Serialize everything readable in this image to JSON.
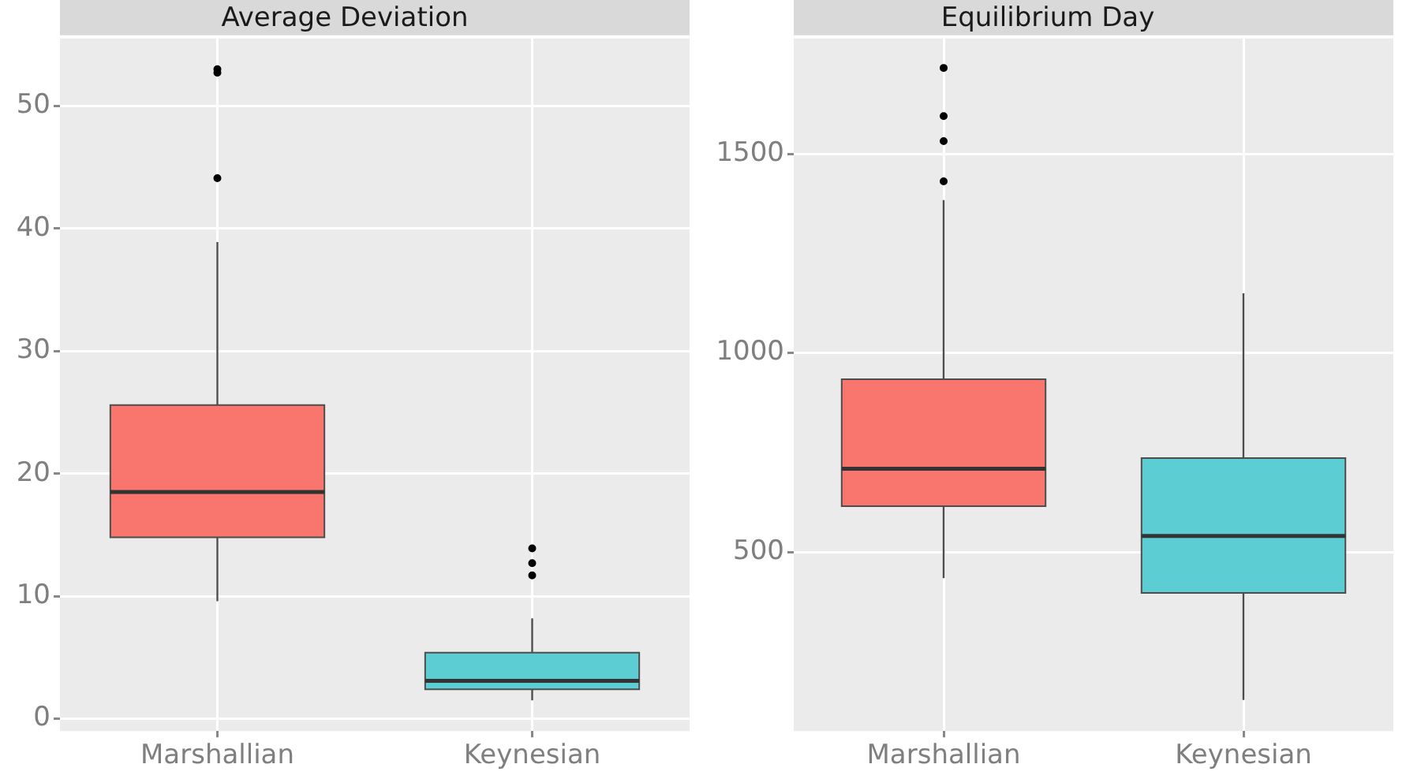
{
  "chart_data": [
    {
      "type": "box",
      "title": "Average Deviation",
      "categories": [
        "Marshallian",
        "Keynesian"
      ],
      "colors": [
        "#f8766d",
        "#5ccdd2"
      ],
      "boxes": [
        {
          "low": 9.6,
          "q1": 14.8,
          "median": 18.5,
          "q3": 25.6,
          "high": 38.9,
          "outliers": [
            44.1,
            52.7,
            53
          ]
        },
        {
          "low": 1.5,
          "q1": 2.4,
          "median": 3.1,
          "q3": 5.4,
          "high": 8.2,
          "outliers": [
            11.7,
            12.7,
            13.9
          ]
        }
      ],
      "ylim": [
        -1,
        55.5
      ],
      "yticks": [
        0,
        10,
        20,
        30,
        40,
        50
      ],
      "grid": true
    },
    {
      "type": "box",
      "title": "Equilibrium Day",
      "categories": [
        "Marshallian",
        "Keynesian"
      ],
      "colors": [
        "#f8766d",
        "#5ccdd2"
      ],
      "boxes": [
        {
          "low": 434,
          "q1": 615,
          "median": 709,
          "q3": 934,
          "high": 1384,
          "outliers": [
            1431,
            1532,
            1595,
            1716
          ]
        },
        {
          "low": 128,
          "q1": 397,
          "median": 540,
          "q3": 736,
          "high": 1150
        }
      ],
      "ylim": [
        50,
        1790
      ],
      "yticks": [
        500,
        1000,
        1500
      ],
      "grid": true
    }
  ]
}
